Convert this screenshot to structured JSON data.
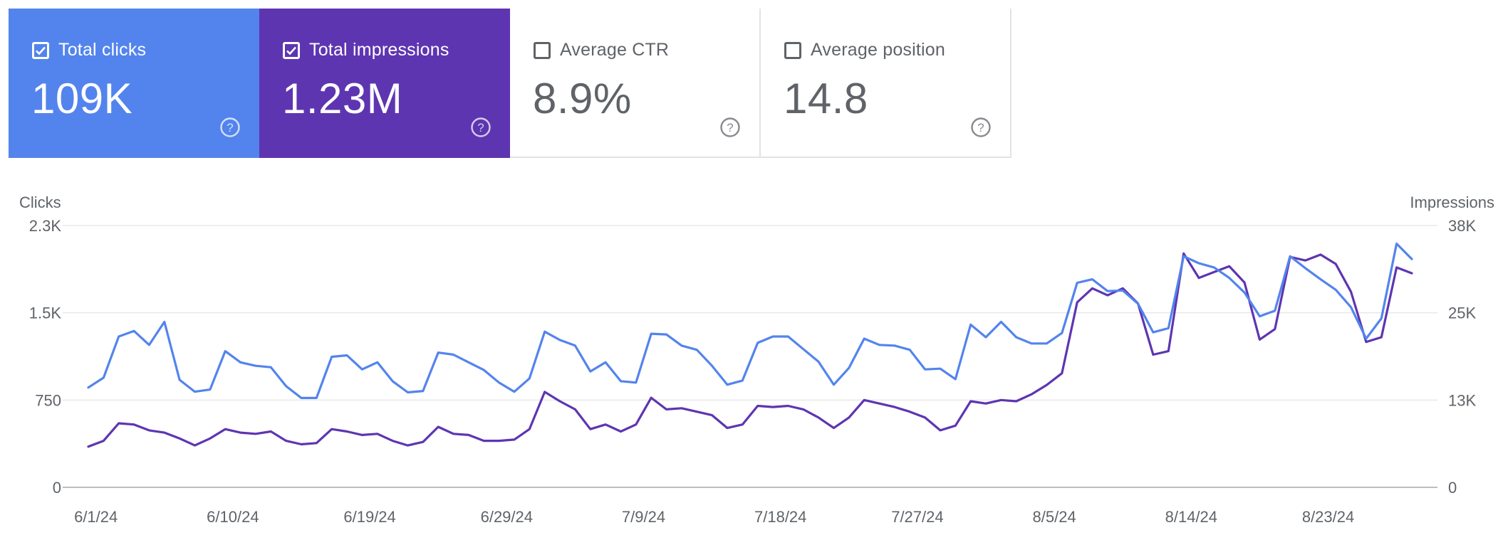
{
  "cards": [
    {
      "label": "Total clicks",
      "value": "109K",
      "checked": true,
      "color": "#5384ED"
    },
    {
      "label": "Total impressions",
      "value": "1.23M",
      "checked": true,
      "color": "#5E35B1"
    },
    {
      "label": "Average CTR",
      "value": "8.9%",
      "checked": false,
      "color": "#FFFFFF"
    },
    {
      "label": "Average position",
      "value": "14.8",
      "checked": false,
      "color": "#FFFFFF"
    }
  ],
  "chart_data": {
    "type": "line",
    "left_axis": {
      "label": "Clicks",
      "ticks": [
        "0",
        "750",
        "1.5K",
        "2.3K"
      ],
      "range": [
        0,
        2250
      ]
    },
    "right_axis": {
      "label": "Impressions",
      "ticks": [
        "0",
        "13K",
        "25K",
        "38K"
      ],
      "range": [
        0,
        37500
      ]
    },
    "x_tick_labels": [
      "6/1/24",
      "6/10/24",
      "6/19/24",
      "6/29/24",
      "7/9/24",
      "7/18/24",
      "7/27/24",
      "8/5/24",
      "8/14/24",
      "8/23/24"
    ],
    "grid": true,
    "series": [
      {
        "axis": "left",
        "color": "#5E35B1",
        "values": [
          350,
          400,
          550,
          540,
          490,
          470,
          420,
          360,
          420,
          500,
          470,
          460,
          480,
          400,
          370,
          380,
          500,
          480,
          450,
          460,
          400,
          360,
          390,
          520,
          460,
          450,
          400,
          400,
          410,
          500,
          820,
          740,
          670,
          500,
          540,
          480,
          540,
          770,
          670,
          680,
          650,
          620,
          510,
          540,
          700,
          690,
          700,
          670,
          600,
          510,
          600,
          750,
          720,
          690,
          650,
          600,
          490,
          530,
          740,
          720,
          750,
          740,
          800,
          880,
          980,
          1590,
          1710,
          1650,
          1710,
          1580,
          1140,
          1170,
          2010,
          1800,
          1850,
          1900,
          1760,
          1270,
          1360,
          1980,
          1950,
          2000,
          1920,
          1680,
          1250,
          1290,
          1890,
          1840
        ]
      },
      {
        "axis": "right",
        "color": "#5384ED",
        "values": [
          14300,
          15700,
          21600,
          22400,
          20400,
          23700,
          15400,
          13700,
          14000,
          19500,
          17900,
          17400,
          17200,
          14500,
          12800,
          12800,
          18700,
          18900,
          16900,
          17900,
          15200,
          13600,
          13800,
          19300,
          19000,
          17900,
          16800,
          15000,
          13700,
          15600,
          22300,
          21100,
          20300,
          16600,
          17900,
          15200,
          15000,
          22000,
          21900,
          20300,
          19700,
          17400,
          14700,
          15300,
          20700,
          21600,
          21600,
          19800,
          18000,
          14700,
          17100,
          21300,
          20400,
          20300,
          19700,
          16900,
          17000,
          15500,
          23300,
          21500,
          23700,
          21500,
          20600,
          20600,
          22100,
          29300,
          29800,
          28100,
          28200,
          26300,
          22200,
          22800,
          33100,
          32100,
          31500,
          30000,
          27900,
          24500,
          25300,
          33100,
          31400,
          29800,
          28300,
          25800,
          21300,
          24200,
          34900,
          32700
        ]
      }
    ]
  }
}
